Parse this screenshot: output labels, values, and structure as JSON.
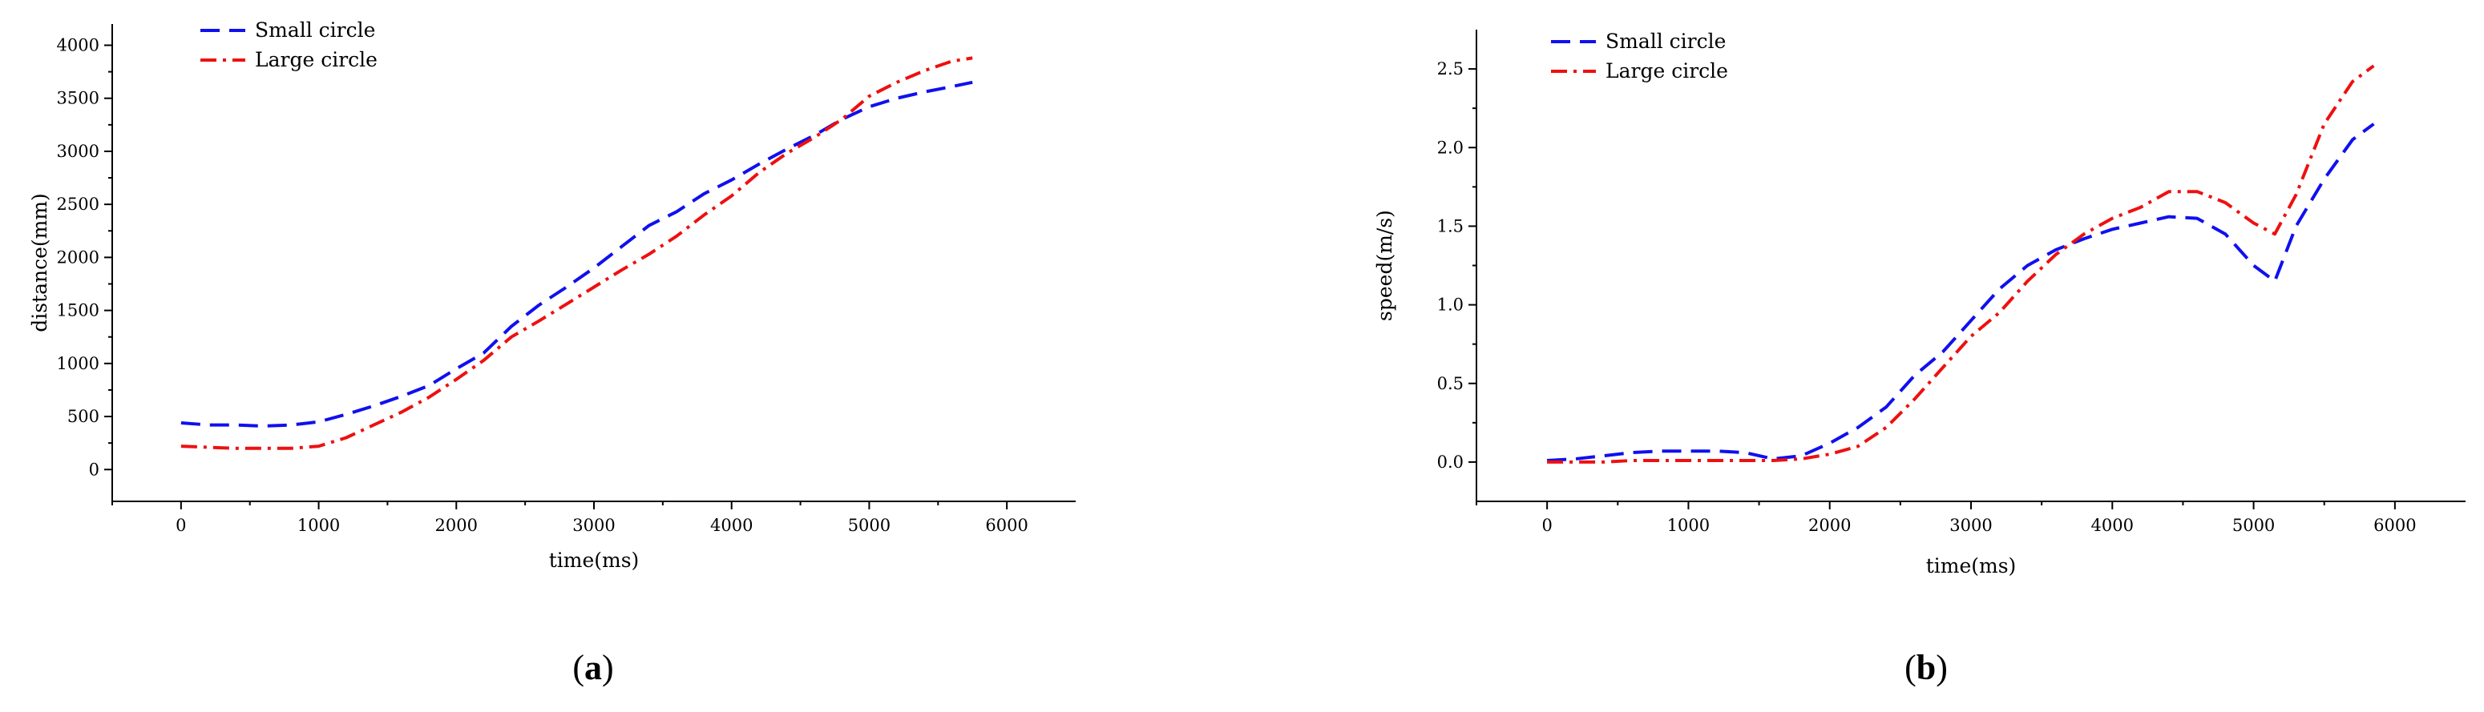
{
  "chart_data": [
    {
      "type": "line",
      "panel_label": "a",
      "xlabel": "time(ms)",
      "ylabel": "distance(mm)",
      "xlim": [
        -500,
        6500
      ],
      "ylim": [
        -300,
        4200
      ],
      "xticks": [
        0,
        1000,
        2000,
        3000,
        4000,
        5000,
        6000
      ],
      "yticks": [
        0,
        500,
        1000,
        1500,
        2000,
        2500,
        3000,
        3500,
        4000
      ],
      "legend_position": "top-left",
      "series": [
        {
          "name": "Small circle",
          "color": "#1010ee",
          "dash": "dashed",
          "x": [
            0,
            200,
            400,
            600,
            800,
            1000,
            1200,
            1400,
            1600,
            1800,
            2000,
            2200,
            2400,
            2600,
            2800,
            3000,
            3200,
            3400,
            3600,
            3800,
            4000,
            4200,
            4400,
            4600,
            4800,
            5000,
            5200,
            5400,
            5600,
            5750
          ],
          "y": [
            440,
            420,
            420,
            410,
            420,
            450,
            520,
            600,
            690,
            790,
            950,
            1100,
            1350,
            1550,
            1720,
            1900,
            2100,
            2300,
            2430,
            2600,
            2730,
            2880,
            3020,
            3150,
            3300,
            3420,
            3500,
            3560,
            3610,
            3650
          ]
        },
        {
          "name": "Large circle",
          "color": "#ee1010",
          "dash": "dashdot",
          "x": [
            0,
            200,
            400,
            600,
            800,
            1000,
            1200,
            1400,
            1600,
            1800,
            2000,
            2200,
            2400,
            2600,
            2800,
            3000,
            3200,
            3400,
            3600,
            3800,
            4000,
            4200,
            4400,
            4600,
            4800,
            5000,
            5200,
            5400,
            5600,
            5750
          ],
          "y": [
            220,
            210,
            200,
            200,
            200,
            220,
            300,
            420,
            540,
            680,
            850,
            1030,
            1250,
            1400,
            1560,
            1720,
            1880,
            2030,
            2200,
            2400,
            2580,
            2800,
            2980,
            3130,
            3300,
            3520,
            3650,
            3760,
            3850,
            3880
          ]
        }
      ]
    },
    {
      "type": "line",
      "panel_label": "b",
      "xlabel": "time(ms)",
      "ylabel": "speed(m/s)",
      "xlim": [
        -500,
        6500
      ],
      "ylim": [
        -0.25,
        2.75
      ],
      "xticks": [
        0,
        1000,
        2000,
        3000,
        4000,
        5000,
        6000
      ],
      "yticks": [
        0.0,
        0.5,
        1.0,
        1.5,
        2.0,
        2.5
      ],
      "legend_position": "top-left",
      "series": [
        {
          "name": "Small circle",
          "color": "#1010ee",
          "dash": "dashed",
          "x": [
            0,
            200,
            400,
            600,
            800,
            1000,
            1200,
            1400,
            1600,
            1800,
            2000,
            2200,
            2400,
            2600,
            2800,
            3000,
            3200,
            3400,
            3600,
            3800,
            4000,
            4200,
            4400,
            4600,
            4800,
            5000,
            5150,
            5300,
            5500,
            5700,
            5850
          ],
          "y": [
            0.01,
            0.02,
            0.04,
            0.06,
            0.07,
            0.07,
            0.07,
            0.06,
            0.02,
            0.04,
            0.12,
            0.22,
            0.35,
            0.55,
            0.7,
            0.9,
            1.1,
            1.25,
            1.35,
            1.42,
            1.48,
            1.52,
            1.56,
            1.55,
            1.45,
            1.25,
            1.15,
            1.5,
            1.8,
            2.05,
            2.15
          ]
        },
        {
          "name": "Large circle",
          "color": "#ee1010",
          "dash": "dashdot",
          "x": [
            0,
            200,
            400,
            600,
            800,
            1000,
            1200,
            1400,
            1600,
            1800,
            2000,
            2200,
            2400,
            2600,
            2800,
            3000,
            3200,
            3400,
            3600,
            3800,
            4000,
            4200,
            4400,
            4600,
            4800,
            5000,
            5150,
            5300,
            5500,
            5700,
            5850
          ],
          "y": [
            0.0,
            0.0,
            0.0,
            0.01,
            0.01,
            0.01,
            0.01,
            0.01,
            0.01,
            0.02,
            0.05,
            0.1,
            0.22,
            0.4,
            0.6,
            0.8,
            0.95,
            1.15,
            1.32,
            1.45,
            1.55,
            1.62,
            1.72,
            1.72,
            1.65,
            1.52,
            1.45,
            1.7,
            2.15,
            2.42,
            2.52
          ]
        }
      ]
    }
  ]
}
